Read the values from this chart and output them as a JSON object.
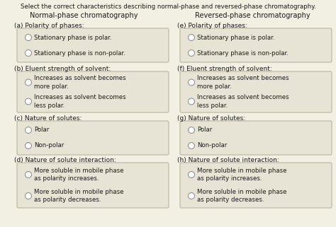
{
  "title": "Select the correct characteristics describing normal-phase and reversed-phase chromatography.",
  "col1_header": "Normal-phase chromatography",
  "col2_header": "Reversed-phase chromatography",
  "box_color": "#e8e4d5",
  "box_edge_color": "#b8b4a0",
  "text_color": "#1a1a1a",
  "fig_bg": "#f2efe3",
  "sections_left": [
    {
      "label": "(a) Polarity of phases:",
      "options": [
        "Stationary phase is polar.",
        "Stationary phase is non-polar."
      ]
    },
    {
      "label": "(b) Eluent strength of solvent:",
      "options": [
        "Increases as solvent becomes\nmore polar.",
        "Increases as solvent becomes\nless polar."
      ]
    },
    {
      "label": "(c) Nature of solutes:",
      "options": [
        "Polar",
        "Non-polar"
      ]
    },
    {
      "label": "(d) Nature of solute interaction:",
      "options": [
        "More soluble in mobile phase\nas polarity increases.",
        "More soluble in mobile phase\nas polarity decreases."
      ]
    }
  ],
  "sections_right": [
    {
      "label": "(e) Polarity of phases:",
      "options": [
        "Stationary phase is polar.",
        "Stationary phase is non-polar."
      ]
    },
    {
      "label": "(f) Eluent strength of solvent:",
      "options": [
        "Increases as solvent becomes\nmore polar.",
        "Increases as solvent becomes\nless polar."
      ]
    },
    {
      "label": "(g) Nature of solutes:",
      "options": [
        "Polar",
        "Non-polar"
      ]
    },
    {
      "label": "(h) Nature of solute interaction:",
      "options": [
        "More soluble in mobile phase\nas polarity increases.",
        "More soluble in mobile phase\nas polarity decreases."
      ]
    }
  ],
  "title_fontsize": 6.2,
  "header_fontsize": 7.0,
  "label_fontsize": 6.5,
  "option_fontsize": 6.2
}
